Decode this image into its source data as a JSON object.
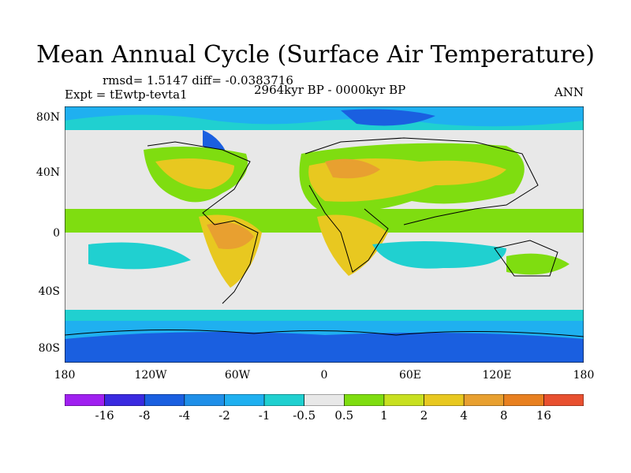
{
  "title": "Mean Annual Cycle (Surface Air Temperature)",
  "stats": "rmsd= 1.5147 diff= -0.0383716",
  "experiment": "Expt = tEwtp-tevta1",
  "period": "2964kyr BP - 0000kyr BP",
  "season": "ANN",
  "y_ticks": [
    "80N",
    "40N",
    "0",
    "40S",
    "80S"
  ],
  "x_ticks": [
    "180",
    "120W",
    "60W",
    "0",
    "60E",
    "120E",
    "180"
  ],
  "colorbar": {
    "colors": [
      "#a020f0",
      "#3a2ae0",
      "#1a5fe0",
      "#1f8fe8",
      "#1fb0f0",
      "#20d0d0",
      "#e8e8e8",
      "#7fdd10",
      "#c8e020",
      "#e8c820",
      "#e8a030",
      "#e88020",
      "#e85030"
    ],
    "labels": [
      "-16",
      "-8",
      "-4",
      "-2",
      "-1",
      "-0.5",
      "0.5",
      "1",
      "2",
      "4",
      "8",
      "16"
    ]
  },
  "map_colors": {
    "ocean_neutral": "#e8e8e8",
    "cool_band": "#1fb0f0",
    "mild_cool": "#20d0d0",
    "strong_cool": "#1a5fe0",
    "deep_cool": "#3a2ae0",
    "warm_green": "#7fdd10",
    "warm_yellow": "#c8e020",
    "warm_gold": "#e8c820",
    "warm_orange": "#e8a030"
  }
}
